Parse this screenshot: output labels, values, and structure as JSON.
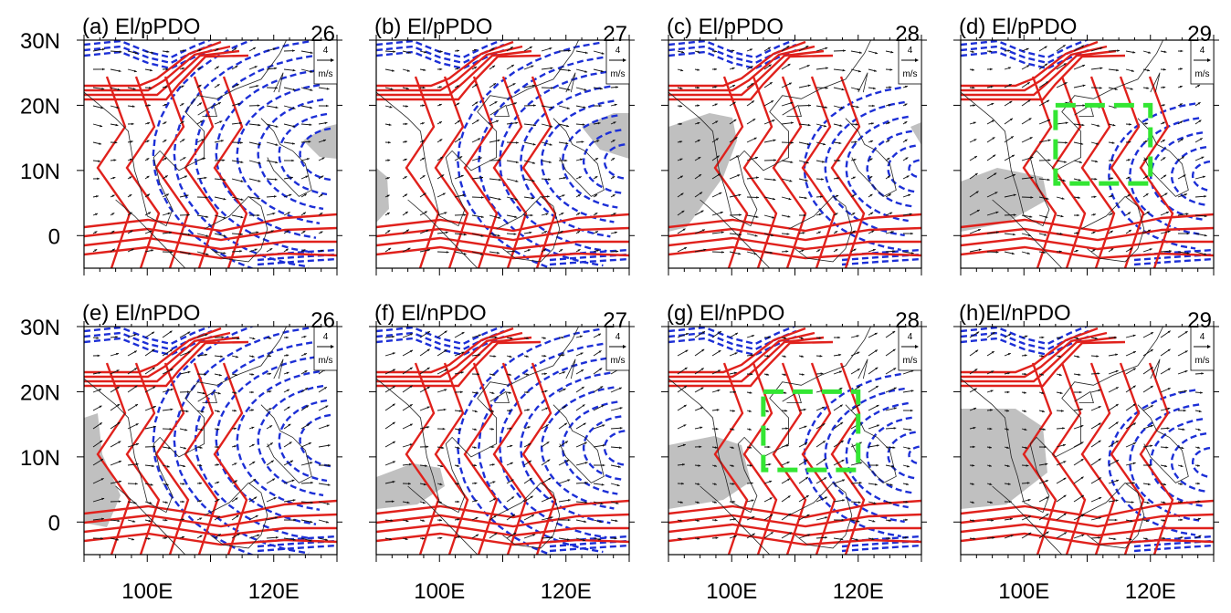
{
  "figure": {
    "domain": {
      "lon_min": 90,
      "lon_max": 130,
      "lat_min": -5,
      "lat_max": 30
    },
    "x_ticks": [
      {
        "lon": 100,
        "label": "100E"
      },
      {
        "lon": 120,
        "label": "120E"
      }
    ],
    "y_ticks": [
      {
        "lat": 0,
        "label": "0"
      },
      {
        "lat": 10,
        "label": "10N"
      },
      {
        "lat": 20,
        "label": "20N"
      },
      {
        "lat": 30,
        "label": "30N"
      }
    ],
    "reference_vector": {
      "value": "4",
      "unit": "m/s"
    },
    "colors": {
      "positive_contour": "#e0211c",
      "negative_contour": "#1c2fd6",
      "shading": "#c0c0c0",
      "box": "#33e633"
    },
    "contour_style": {
      "positive": "solid red",
      "negative": "dashed blue"
    },
    "panels": [
      {
        "id": "a",
        "title": "(a) El/pPDO",
        "number": "26",
        "row": 0,
        "col": 0,
        "box": null
      },
      {
        "id": "b",
        "title": "(b) El/pPDO",
        "number": "27",
        "row": 0,
        "col": 1,
        "box": null
      },
      {
        "id": "c",
        "title": "(c) El/pPDO",
        "number": "28",
        "row": 0,
        "col": 2,
        "box": null
      },
      {
        "id": "d",
        "title": "(d) El/pPDO",
        "number": "29",
        "row": 0,
        "col": 3,
        "box": {
          "lon": [
            105,
            120
          ],
          "lat": [
            8,
            20
          ]
        }
      },
      {
        "id": "e",
        "title": "(e) El/nPDO",
        "number": "26",
        "row": 1,
        "col": 0,
        "box": null
      },
      {
        "id": "f",
        "title": "(f) El/nPDO",
        "number": "27",
        "row": 1,
        "col": 1,
        "box": null
      },
      {
        "id": "g",
        "title": "(g) El/nPDO",
        "number": "28",
        "row": 1,
        "col": 2,
        "box": {
          "lon": [
            105,
            120
          ],
          "lat": [
            8,
            20
          ]
        }
      },
      {
        "id": "h",
        "title": "(h)El/nPDO",
        "number": "29",
        "row": 1,
        "col": 3,
        "box": null
      }
    ]
  }
}
